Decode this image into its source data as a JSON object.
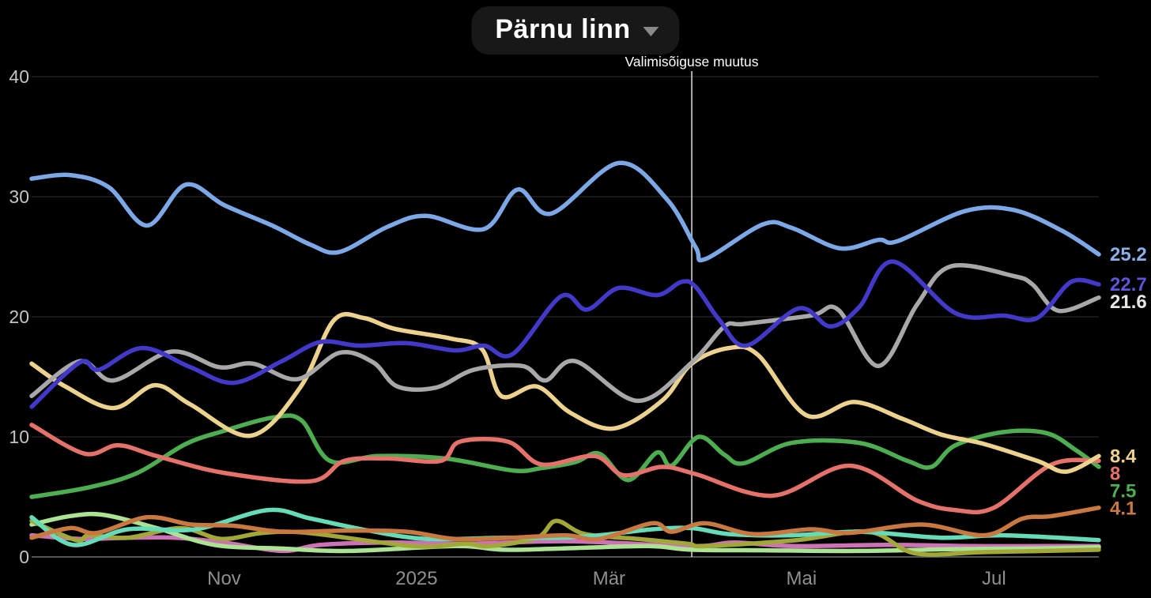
{
  "header": {
    "title": "Pärnu linn",
    "dropdown_icon": "chevron-down"
  },
  "annotation": {
    "label": "Valimisõiguse muutus",
    "x_month": 6.86
  },
  "colors": {
    "background": "#000000",
    "grid": "#2f2f2f",
    "grid_zero": "#555555",
    "y_tick_text": "#c4c4c4",
    "x_tick_text": "#8f8f8f",
    "annotation_line": "#e0e0e0",
    "annotation_text": "#ffffff",
    "title_text": "#ffffff",
    "pill_bg": "#181818"
  },
  "chart_data": {
    "type": "line",
    "title": "Pärnu linn",
    "x_unit": "months since Sep 2024 (fractional)",
    "x_domain": [
      0,
      11.09
    ],
    "y_domain": [
      0,
      40
    ],
    "grid": true,
    "legend_position": "right-end-labels",
    "y_ticks": [
      0,
      10,
      20,
      30,
      40
    ],
    "x_ticks": [
      {
        "m": 2,
        "label": "Nov"
      },
      {
        "m": 4,
        "label": "2025"
      },
      {
        "m": 6,
        "label": "Mär"
      },
      {
        "m": 8,
        "label": "Mai"
      },
      {
        "m": 10,
        "label": "Jul"
      }
    ],
    "annotation_line": {
      "m": 6.86,
      "label": "Valimisõiguse muutus"
    },
    "series": [
      {
        "name": "pink",
        "color": "#ce72b6",
        "end_label": null,
        "points": [
          [
            0,
            1.8
          ],
          [
            0.5,
            1.5
          ],
          [
            1.0,
            1.6
          ],
          [
            1.5,
            1.6
          ],
          [
            2.0,
            1.2
          ],
          [
            2.6,
            0.5
          ],
          [
            3.0,
            1.0
          ],
          [
            3.7,
            1.2
          ],
          [
            4.5,
            1.1
          ],
          [
            5.6,
            1.3
          ],
          [
            6.86,
            0.9
          ],
          [
            7.3,
            1.2
          ],
          [
            7.9,
            0.9
          ],
          [
            8.9,
            1.0
          ],
          [
            9.8,
            0.9
          ],
          [
            10.5,
            0.9
          ],
          [
            11.09,
            0.9
          ]
        ]
      },
      {
        "name": "lightgreen",
        "color": "#abe293",
        "end_label": null,
        "points": [
          [
            0,
            2.7
          ],
          [
            0.4,
            3.4
          ],
          [
            0.75,
            3.5
          ],
          [
            1.3,
            2.4
          ],
          [
            1.9,
            1.0
          ],
          [
            2.6,
            0.7
          ],
          [
            3.3,
            0.5
          ],
          [
            4.4,
            0.9
          ],
          [
            4.9,
            0.6
          ],
          [
            5.5,
            0.7
          ],
          [
            6.4,
            0.9
          ],
          [
            6.86,
            0.6
          ],
          [
            7.6,
            0.55
          ],
          [
            8.6,
            0.5
          ],
          [
            9.6,
            0.65
          ],
          [
            10.4,
            0.7
          ],
          [
            11.09,
            0.8
          ]
        ]
      },
      {
        "name": "olive",
        "color": "#a2a838",
        "end_label": null,
        "points": [
          [
            0,
            3.0
          ],
          [
            0.46,
            1.4
          ],
          [
            0.6,
            1.8
          ],
          [
            1.0,
            1.6
          ],
          [
            1.55,
            2.4
          ],
          [
            1.97,
            1.5
          ],
          [
            2.4,
            2.0
          ],
          [
            2.87,
            2.0
          ],
          [
            3.96,
            0.9
          ],
          [
            4.5,
            1.1
          ],
          [
            4.76,
            0.9
          ],
          [
            5.25,
            1.6
          ],
          [
            5.45,
            3.0
          ],
          [
            5.75,
            1.9
          ],
          [
            6.3,
            1.5
          ],
          [
            6.82,
            1.1
          ],
          [
            7.0,
            0.9
          ],
          [
            7.95,
            1.4
          ],
          [
            8.7,
            2.1
          ],
          [
            9.18,
            0.3
          ],
          [
            9.9,
            0.4
          ],
          [
            11.09,
            0.6
          ]
        ]
      },
      {
        "name": "teal",
        "color": "#66dbb8",
        "end_label": null,
        "points": [
          [
            0,
            3.3
          ],
          [
            0.43,
            1.0
          ],
          [
            1.0,
            2.3
          ],
          [
            1.7,
            2.3
          ],
          [
            2.45,
            3.9
          ],
          [
            2.9,
            3.2
          ],
          [
            3.5,
            2.2
          ],
          [
            4.1,
            1.5
          ],
          [
            4.9,
            1.6
          ],
          [
            5.5,
            1.6
          ],
          [
            5.9,
            1.8
          ],
          [
            6.45,
            2.3
          ],
          [
            6.86,
            2.4
          ],
          [
            7.25,
            1.9
          ],
          [
            7.9,
            1.8
          ],
          [
            8.6,
            2.1
          ],
          [
            9.45,
            1.6
          ],
          [
            10.1,
            1.8
          ],
          [
            11.09,
            1.4
          ]
        ]
      },
      {
        "name": "orange",
        "color": "#c97840",
        "end_label": "4.1",
        "points": [
          [
            0,
            1.6
          ],
          [
            0.4,
            2.4
          ],
          [
            0.68,
            2.0
          ],
          [
            1.2,
            3.3
          ],
          [
            1.66,
            2.7
          ],
          [
            2.1,
            2.6
          ],
          [
            2.6,
            2.1
          ],
          [
            3.3,
            2.2
          ],
          [
            3.9,
            2.1
          ],
          [
            4.4,
            1.5
          ],
          [
            5.0,
            1.6
          ],
          [
            5.55,
            1.8
          ],
          [
            5.9,
            1.5
          ],
          [
            6.45,
            2.8
          ],
          [
            6.65,
            2.1
          ],
          [
            7.0,
            2.8
          ],
          [
            7.5,
            1.9
          ],
          [
            8.1,
            2.3
          ],
          [
            8.5,
            2.0
          ],
          [
            9.25,
            2.7
          ],
          [
            9.9,
            1.8
          ],
          [
            10.3,
            3.2
          ],
          [
            10.6,
            3.4
          ],
          [
            11.09,
            4.1
          ]
        ]
      },
      {
        "name": "green",
        "color": "#4dae51",
        "end_label": "7.5",
        "points": [
          [
            0,
            5.0
          ],
          [
            0.6,
            5.8
          ],
          [
            1.1,
            7.0
          ],
          [
            1.6,
            9.4
          ],
          [
            2.0,
            10.5
          ],
          [
            2.5,
            11.6
          ],
          [
            2.8,
            11.4
          ],
          [
            3.1,
            8.0
          ],
          [
            3.6,
            8.4
          ],
          [
            4.3,
            8.2
          ],
          [
            5.0,
            7.2
          ],
          [
            5.3,
            7.4
          ],
          [
            5.65,
            7.9
          ],
          [
            5.9,
            8.6
          ],
          [
            6.2,
            6.4
          ],
          [
            6.5,
            8.7
          ],
          [
            6.65,
            7.6
          ],
          [
            6.93,
            10.0
          ],
          [
            7.2,
            8.5
          ],
          [
            7.4,
            7.8
          ],
          [
            7.9,
            9.5
          ],
          [
            8.6,
            9.5
          ],
          [
            9.1,
            8.0
          ],
          [
            9.35,
            7.5
          ],
          [
            9.6,
            9.3
          ],
          [
            10.1,
            10.4
          ],
          [
            10.55,
            10.3
          ],
          [
            10.85,
            8.9
          ],
          [
            11.09,
            7.5
          ]
        ]
      },
      {
        "name": "red",
        "color": "#e5716b",
        "end_label": "8",
        "points": [
          [
            0,
            11.0
          ],
          [
            0.55,
            8.6
          ],
          [
            0.9,
            9.3
          ],
          [
            1.3,
            8.4
          ],
          [
            2.0,
            7.0
          ],
          [
            2.9,
            6.3
          ],
          [
            3.25,
            8.0
          ],
          [
            3.7,
            8.2
          ],
          [
            4.25,
            8.0
          ],
          [
            4.45,
            9.6
          ],
          [
            4.95,
            9.6
          ],
          [
            5.3,
            7.7
          ],
          [
            5.85,
            8.4
          ],
          [
            6.15,
            6.8
          ],
          [
            6.55,
            7.5
          ],
          [
            6.9,
            6.9
          ],
          [
            7.7,
            5.1
          ],
          [
            8.5,
            7.6
          ],
          [
            9.2,
            4.7
          ],
          [
            9.6,
            3.9
          ],
          [
            10.0,
            4.1
          ],
          [
            10.6,
            7.7
          ],
          [
            11.09,
            8.0
          ]
        ]
      },
      {
        "name": "yellow",
        "color": "#edd28d",
        "end_label": "8.4",
        "points": [
          [
            0,
            16.1
          ],
          [
            0.35,
            14.2
          ],
          [
            0.85,
            12.4
          ],
          [
            1.28,
            14.3
          ],
          [
            1.65,
            12.7
          ],
          [
            2.28,
            10.1
          ],
          [
            2.79,
            14.1
          ],
          [
            3.14,
            19.7
          ],
          [
            3.45,
            19.9
          ],
          [
            3.77,
            19.0
          ],
          [
            4.35,
            18.2
          ],
          [
            4.68,
            17.3
          ],
          [
            4.88,
            13.4
          ],
          [
            5.25,
            14.2
          ],
          [
            5.6,
            12.0
          ],
          [
            6.05,
            10.7
          ],
          [
            6.55,
            13.0
          ],
          [
            6.86,
            16.1
          ],
          [
            7.25,
            17.4
          ],
          [
            7.55,
            16.8
          ],
          [
            8.05,
            11.8
          ],
          [
            8.55,
            12.9
          ],
          [
            9.05,
            11.5
          ],
          [
            9.45,
            10.2
          ],
          [
            9.9,
            9.4
          ],
          [
            10.45,
            8.0
          ],
          [
            10.75,
            7.1
          ],
          [
            11.09,
            8.4
          ]
        ]
      },
      {
        "name": "gray",
        "color": "#a8a8a8",
        "label_color": "#e6e6e6",
        "end_label": "21.6",
        "points": [
          [
            0,
            13.4
          ],
          [
            0.5,
            16.3
          ],
          [
            0.85,
            14.7
          ],
          [
            1.45,
            17.1
          ],
          [
            1.95,
            15.8
          ],
          [
            2.3,
            16.1
          ],
          [
            2.76,
            14.8
          ],
          [
            3.2,
            17.0
          ],
          [
            3.55,
            16.2
          ],
          [
            3.8,
            14.2
          ],
          [
            4.2,
            14.1
          ],
          [
            4.6,
            15.6
          ],
          [
            5.1,
            15.9
          ],
          [
            5.34,
            14.7
          ],
          [
            5.65,
            16.3
          ],
          [
            6.3,
            13.0
          ],
          [
            6.86,
            16.2
          ],
          [
            7.2,
            19.2
          ],
          [
            7.4,
            19.4
          ],
          [
            8.1,
            20.1
          ],
          [
            8.38,
            20.6
          ],
          [
            8.8,
            15.9
          ],
          [
            9.2,
            21.0
          ],
          [
            9.55,
            24.2
          ],
          [
            10.2,
            23.4
          ],
          [
            10.4,
            22.7
          ],
          [
            10.67,
            20.5
          ],
          [
            11.09,
            21.6
          ]
        ]
      },
      {
        "name": "indigo",
        "color": "#4239c9",
        "label_color": "#5d55d8",
        "end_label": "22.7",
        "points": [
          [
            0,
            12.5
          ],
          [
            0.5,
            16.2
          ],
          [
            0.7,
            15.6
          ],
          [
            1.15,
            17.4
          ],
          [
            1.65,
            15.8
          ],
          [
            2.1,
            14.5
          ],
          [
            2.6,
            16.3
          ],
          [
            3.0,
            17.9
          ],
          [
            3.4,
            17.6
          ],
          [
            3.9,
            17.8
          ],
          [
            4.4,
            17.2
          ],
          [
            4.7,
            17.6
          ],
          [
            5.0,
            16.9
          ],
          [
            5.5,
            21.7
          ],
          [
            5.77,
            20.6
          ],
          [
            6.1,
            22.4
          ],
          [
            6.5,
            21.8
          ],
          [
            6.75,
            22.9
          ],
          [
            6.9,
            22.5
          ],
          [
            7.15,
            19.7
          ],
          [
            7.43,
            17.6
          ],
          [
            7.97,
            20.7
          ],
          [
            8.3,
            19.2
          ],
          [
            8.6,
            20.8
          ],
          [
            8.95,
            24.6
          ],
          [
            9.6,
            20.3
          ],
          [
            10.1,
            20.1
          ],
          [
            10.45,
            19.9
          ],
          [
            10.8,
            22.9
          ],
          [
            11.09,
            22.7
          ]
        ]
      },
      {
        "name": "lightblue",
        "color": "#7da8e8",
        "label_color": "#8ab0ec",
        "end_label": "25.2",
        "points": [
          [
            0,
            31.5
          ],
          [
            0.4,
            31.8
          ],
          [
            0.8,
            30.8
          ],
          [
            1.2,
            27.6
          ],
          [
            1.6,
            31.0
          ],
          [
            2.0,
            29.3
          ],
          [
            2.5,
            27.6
          ],
          [
            2.9,
            26.0
          ],
          [
            3.2,
            25.4
          ],
          [
            3.7,
            27.5
          ],
          [
            4.1,
            28.4
          ],
          [
            4.7,
            27.3
          ],
          [
            5.05,
            30.6
          ],
          [
            5.4,
            28.6
          ],
          [
            6.1,
            32.8
          ],
          [
            6.6,
            29.8
          ],
          [
            6.9,
            25.8
          ],
          [
            7.0,
            24.8
          ],
          [
            7.6,
            27.7
          ],
          [
            7.9,
            27.4
          ],
          [
            8.4,
            25.7
          ],
          [
            8.8,
            26.4
          ],
          [
            9.0,
            26.3
          ],
          [
            9.7,
            28.8
          ],
          [
            10.2,
            28.9
          ],
          [
            10.7,
            27.2
          ],
          [
            11.09,
            25.2
          ]
        ]
      }
    ]
  }
}
